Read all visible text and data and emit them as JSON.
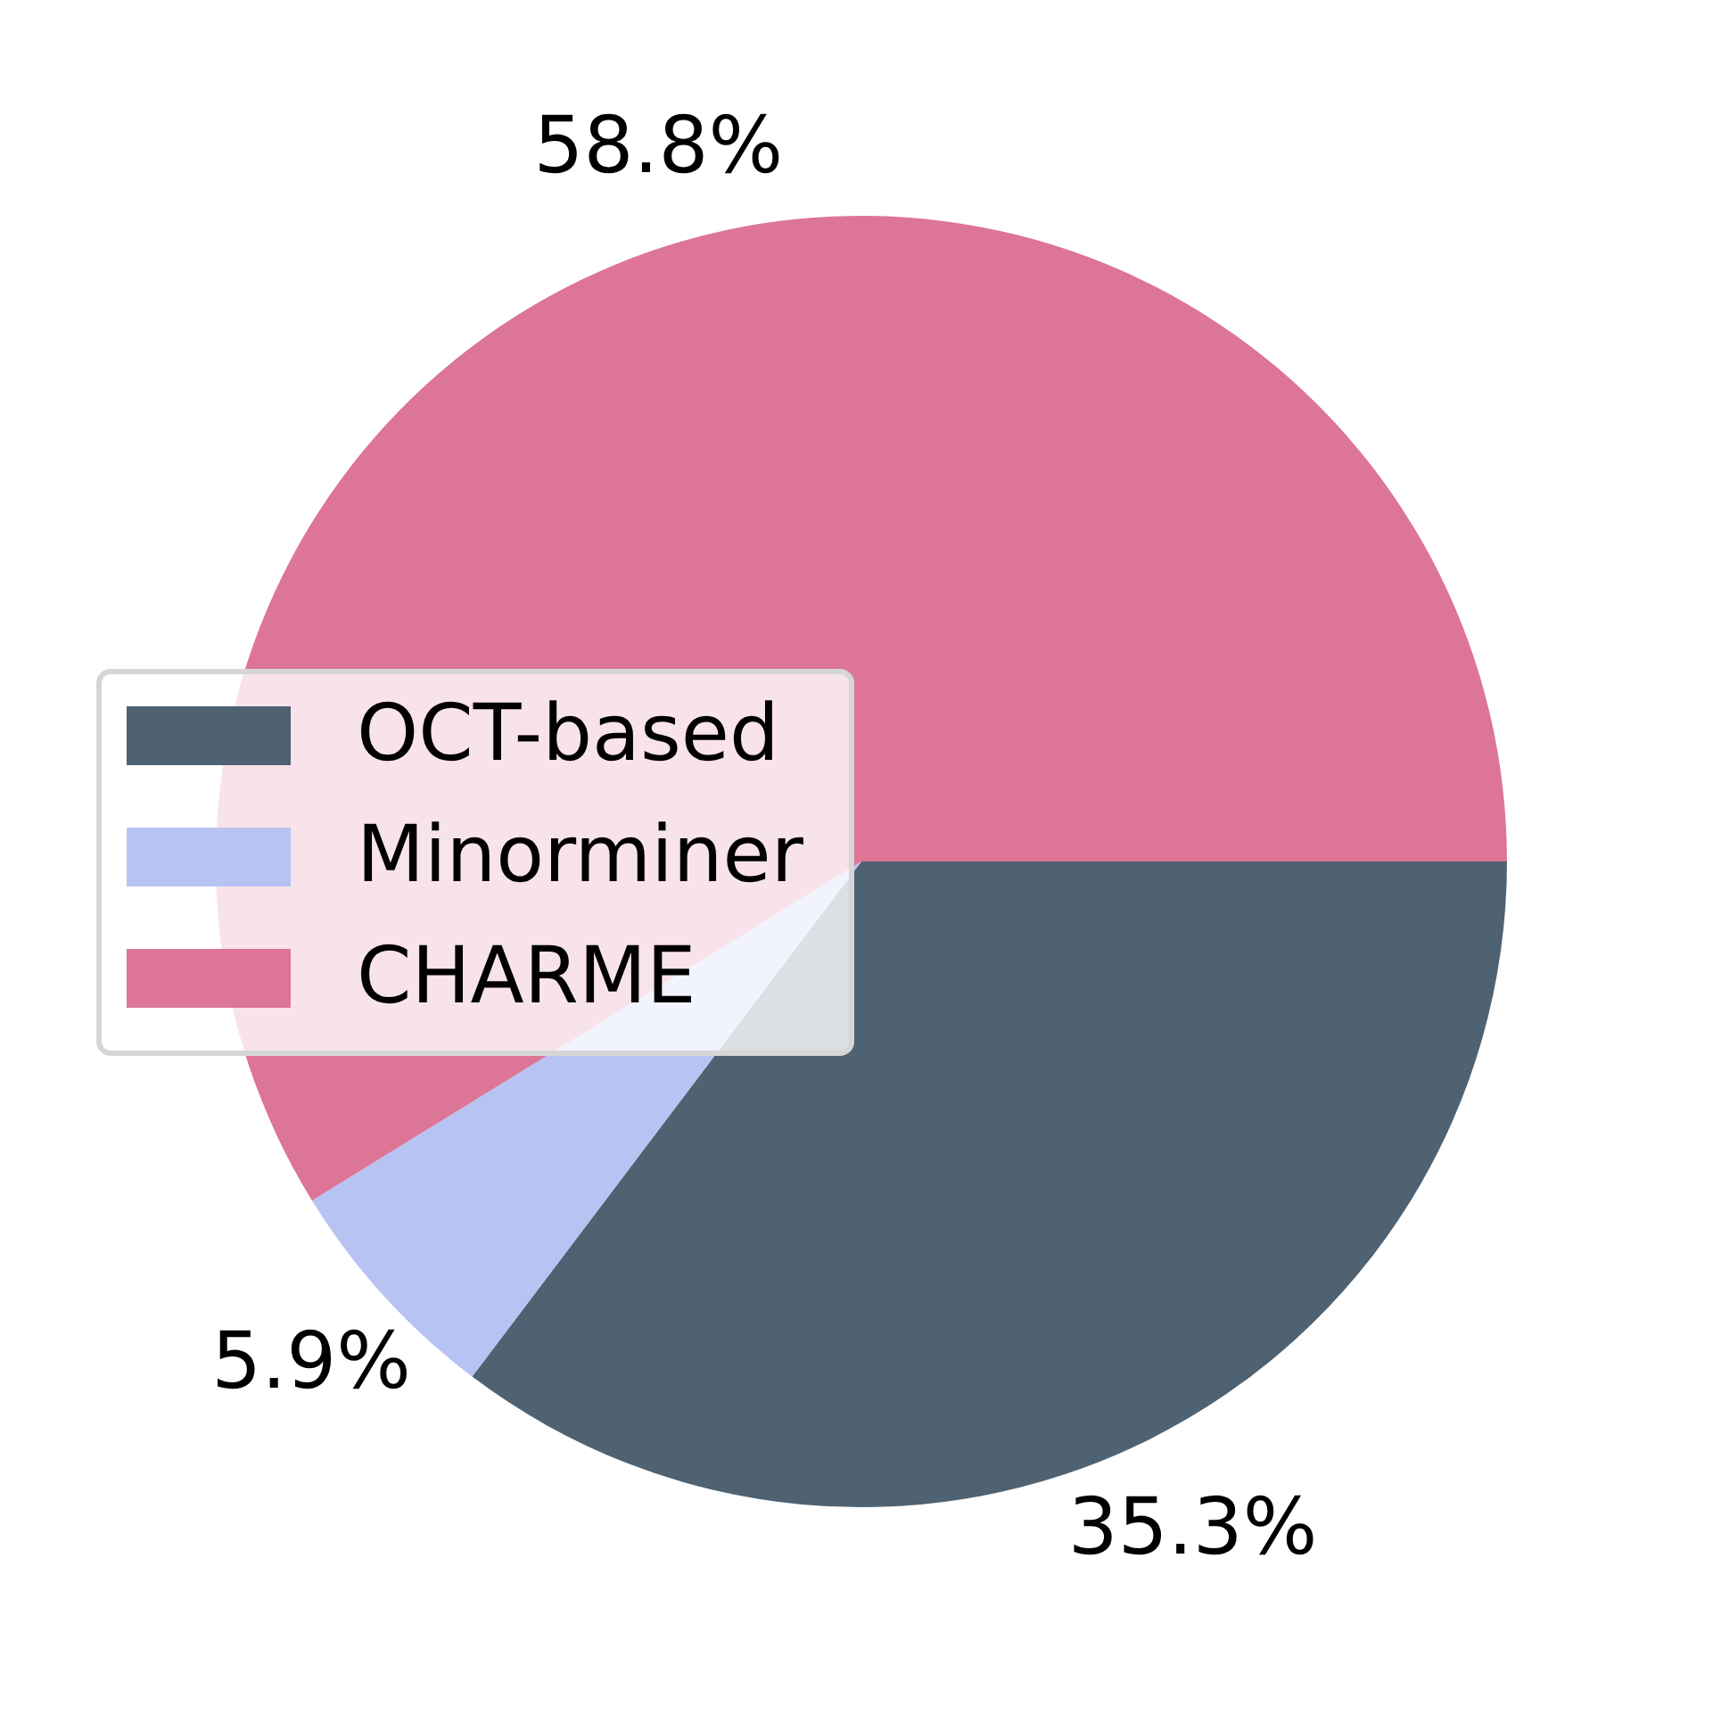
{
  "chart_data": {
    "type": "pie",
    "categories": [
      "OCT-based",
      "Minorminer",
      "CHARME"
    ],
    "values": [
      35.3,
      5.9,
      58.8
    ],
    "colors": [
      "#4f6272",
      "#b7c3f3",
      "#dd7596"
    ],
    "value_labels": [
      "35.3%",
      "5.9%",
      "58.8%"
    ],
    "legend": "center left"
  }
}
